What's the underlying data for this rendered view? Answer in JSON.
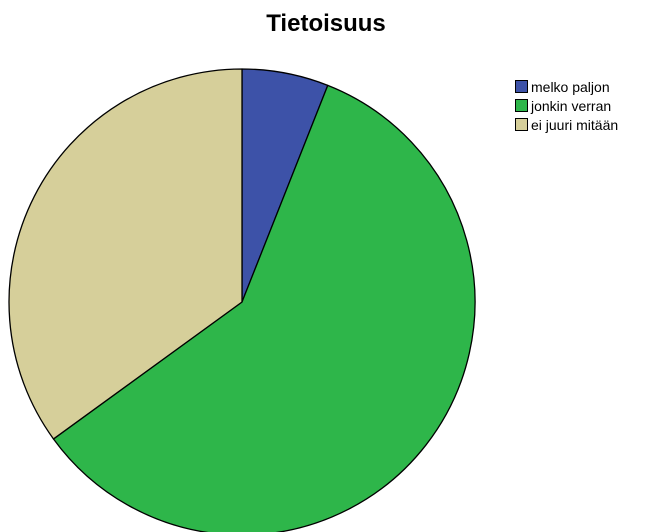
{
  "chart_data": {
    "type": "pie",
    "title": "Tietoisuus",
    "slices": [
      {
        "label": "melko paljon",
        "value": 6,
        "color": "#3d52a8"
      },
      {
        "label": "jonkin verran",
        "value": 59,
        "color": "#2eb64a"
      },
      {
        "label": "ei juuri mitään",
        "value": 35,
        "color": "#d6cf9a"
      }
    ],
    "start_angle_deg": 0,
    "direction": "clockwise",
    "legend_position": "top-right"
  }
}
